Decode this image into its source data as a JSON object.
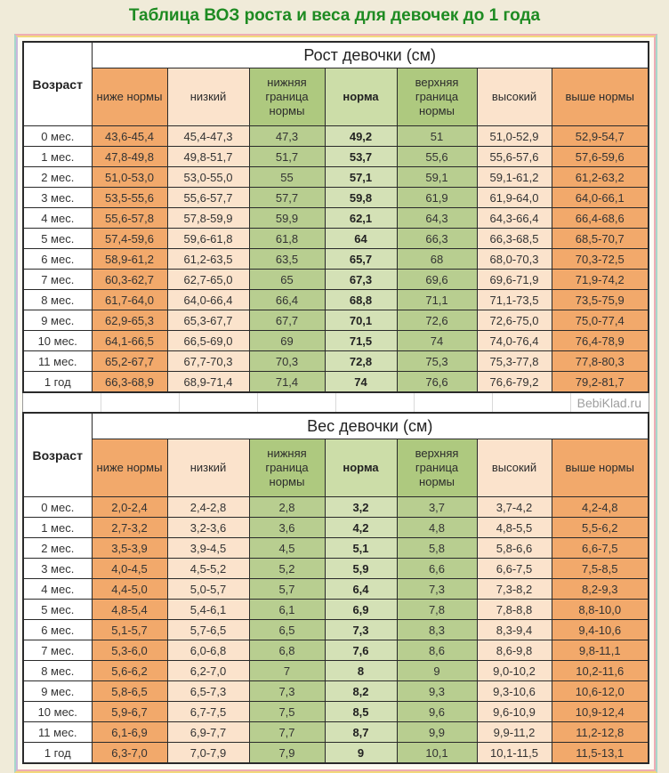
{
  "page": {
    "title": "Таблица ВОЗ роста и веса для девочек до 1 года",
    "watermark": "BebiKlad.ru"
  },
  "columns": [
    "Возраст",
    "ниже нормы",
    "низкий",
    "нижняя граница нормы",
    "норма",
    "верхняя граница нормы",
    "высокий",
    "выше нормы"
  ],
  "palette": {
    "title_green": "#1e8b22",
    "below_above_norm_orange": "#f2a96b",
    "low_high_peach": "#fbe3cc",
    "border_green_header": "#aec97f",
    "border_green_cell": "#b8ce90",
    "norm_green_header": "#ccdda8",
    "norm_green_cell": "#d4e1b6",
    "frame_pink": "#eeadb5",
    "frame_yellow": "#f2d87c",
    "frame_teal": "#a7d6ca",
    "frame_lavender": "#c9b8dc",
    "page_background": "#f0ebd9"
  },
  "tables": [
    {
      "title": "Рост девочки (см)",
      "rows": [
        [
          "0 мес.",
          "43,6-45,4",
          "45,4-47,3",
          "47,3",
          "49,2",
          "51",
          "51,0-52,9",
          "52,9-54,7"
        ],
        [
          "1 мес.",
          "47,8-49,8",
          "49,8-51,7",
          "51,7",
          "53,7",
          "55,6",
          "55,6-57,6",
          "57,6-59,6"
        ],
        [
          "2 мес.",
          "51,0-53,0",
          "53,0-55,0",
          "55",
          "57,1",
          "59,1",
          "59,1-61,2",
          "61,2-63,2"
        ],
        [
          "3 мес.",
          "53,5-55,6",
          "55,6-57,7",
          "57,7",
          "59,8",
          "61,9",
          "61,9-64,0",
          "64,0-66,1"
        ],
        [
          "4 мес.",
          "55,6-57,8",
          "57,8-59,9",
          "59,9",
          "62,1",
          "64,3",
          "64,3-66,4",
          "66,4-68,6"
        ],
        [
          "5 мес.",
          "57,4-59,6",
          "59,6-61,8",
          "61,8",
          "64",
          "66,3",
          "66,3-68,5",
          "68,5-70,7"
        ],
        [
          "6 мес.",
          "58,9-61,2",
          "61,2-63,5",
          "63,5",
          "65,7",
          "68",
          "68,0-70,3",
          "70,3-72,5"
        ],
        [
          "7 мес.",
          "60,3-62,7",
          "62,7-65,0",
          "65",
          "67,3",
          "69,6",
          "69,6-71,9",
          "71,9-74,2"
        ],
        [
          "8 мес.",
          "61,7-64,0",
          "64,0-66,4",
          "66,4",
          "68,8",
          "71,1",
          "71,1-73,5",
          "73,5-75,9"
        ],
        [
          "9 мес.",
          "62,9-65,3",
          "65,3-67,7",
          "67,7",
          "70,1",
          "72,6",
          "72,6-75,0",
          "75,0-77,4"
        ],
        [
          "10 мес.",
          "64,1-66,5",
          "66,5-69,0",
          "69",
          "71,5",
          "74",
          "74,0-76,4",
          "76,4-78,9"
        ],
        [
          "11 мес.",
          "65,2-67,7",
          "67,7-70,3",
          "70,3",
          "72,8",
          "75,3",
          "75,3-77,8",
          "77,8-80,3"
        ],
        [
          "1 год",
          "66,3-68,9",
          "68,9-71,4",
          "71,4",
          "74",
          "76,6",
          "76,6-79,2",
          "79,2-81,7"
        ]
      ]
    },
    {
      "title": "Вес девочки (см)",
      "rows": [
        [
          "0 мес.",
          "2,0-2,4",
          "2,4-2,8",
          "2,8",
          "3,2",
          "3,7",
          "3,7-4,2",
          "4,2-4,8"
        ],
        [
          "1 мес.",
          "2,7-3,2",
          "3,2-3,6",
          "3,6",
          "4,2",
          "4,8",
          "4,8-5,5",
          "5,5-6,2"
        ],
        [
          "2 мес.",
          "3,5-3,9",
          "3,9-4,5",
          "4,5",
          "5,1",
          "5,8",
          "5,8-6,6",
          "6,6-7,5"
        ],
        [
          "3 мес.",
          "4,0-4,5",
          "4,5-5,2",
          "5,2",
          "5,9",
          "6,6",
          "6,6-7,5",
          "7,5-8,5"
        ],
        [
          "4 мес.",
          "4,4-5,0",
          "5,0-5,7",
          "5,7",
          "6,4",
          "7,3",
          "7,3-8,2",
          "8,2-9,3"
        ],
        [
          "5 мес.",
          "4,8-5,4",
          "5,4-6,1",
          "6,1",
          "6,9",
          "7,8",
          "7,8-8,8",
          "8,8-10,0"
        ],
        [
          "6 мес.",
          "5,1-5,7",
          "5,7-6,5",
          "6,5",
          "7,3",
          "8,3",
          "8,3-9,4",
          "9,4-10,6"
        ],
        [
          "7 мес.",
          "5,3-6,0",
          "6,0-6,8",
          "6,8",
          "7,6",
          "8,6",
          "8,6-9,8",
          "9,8-11,1"
        ],
        [
          "8 мес.",
          "5,6-6,2",
          "6,2-7,0",
          "7",
          "8",
          "9",
          "9,0-10,2",
          "10,2-11,6"
        ],
        [
          "9 мес.",
          "5,8-6,5",
          "6,5-7,3",
          "7,3",
          "8,2",
          "9,3",
          "9,3-10,6",
          "10,6-12,0"
        ],
        [
          "10 мес.",
          "5,9-6,7",
          "6,7-7,5",
          "7,5",
          "8,5",
          "9,6",
          "9,6-10,9",
          "10,9-12,4"
        ],
        [
          "11 мес.",
          "6,1-6,9",
          "6,9-7,7",
          "7,7",
          "8,7",
          "9,9",
          "9,9-11,2",
          "11,2-12,8"
        ],
        [
          "1 год",
          "6,3-7,0",
          "7,0-7,9",
          "7,9",
          "9",
          "10,1",
          "10,1-11,5",
          "11,5-13,1"
        ]
      ]
    }
  ]
}
